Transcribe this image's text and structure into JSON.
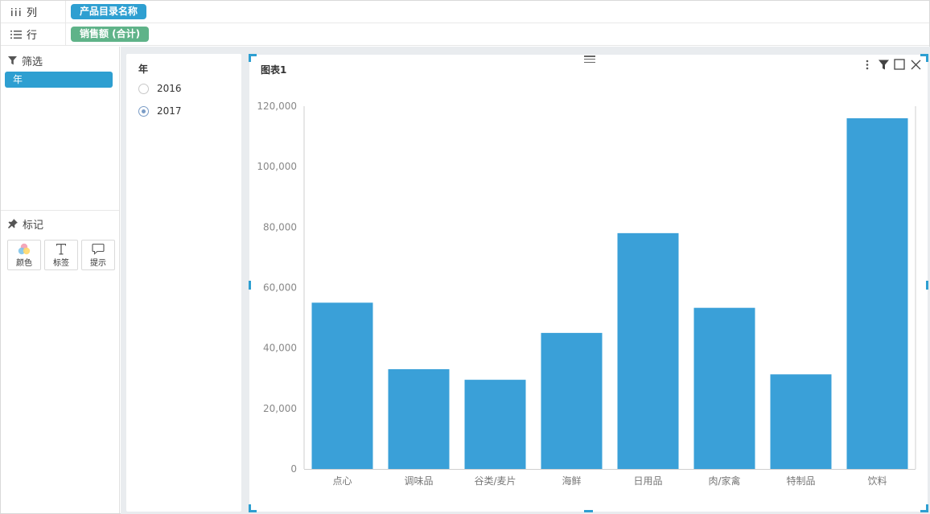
{
  "shelves": {
    "columns": {
      "label": "列",
      "field": "产品目录名称"
    },
    "rows": {
      "label": "行",
      "field": "销售额 (合计)"
    }
  },
  "filter_panel": {
    "title": "筛选",
    "field": "年"
  },
  "marks_panel": {
    "title": "标记",
    "buttons": [
      {
        "label": "颜色",
        "icon": "color-icon"
      },
      {
        "label": "标签",
        "icon": "text-icon"
      },
      {
        "label": "提示",
        "icon": "tooltip-icon"
      }
    ]
  },
  "year_filter": {
    "title": "年",
    "options": [
      {
        "label": "2016",
        "selected": false
      },
      {
        "label": "2017",
        "selected": true
      }
    ]
  },
  "chart_title": "图表1",
  "colors": {
    "accent": "#2e9fd1",
    "bar": "#3aa0d8",
    "green_pill": "#5fb389"
  },
  "chart_data": {
    "type": "bar",
    "title": "图表1",
    "categories": [
      "点心",
      "调味品",
      "谷类/麦片",
      "海鲜",
      "日用品",
      "肉/家禽",
      "特制品",
      "饮料"
    ],
    "values": [
      55000,
      33000,
      29500,
      45000,
      78000,
      53300,
      31300,
      116000
    ],
    "ylim": [
      0,
      120000
    ],
    "yticks": [
      "0",
      "20,000",
      "40,000",
      "60,000",
      "80,000",
      "100,000",
      "120,000"
    ],
    "grid": false
  }
}
